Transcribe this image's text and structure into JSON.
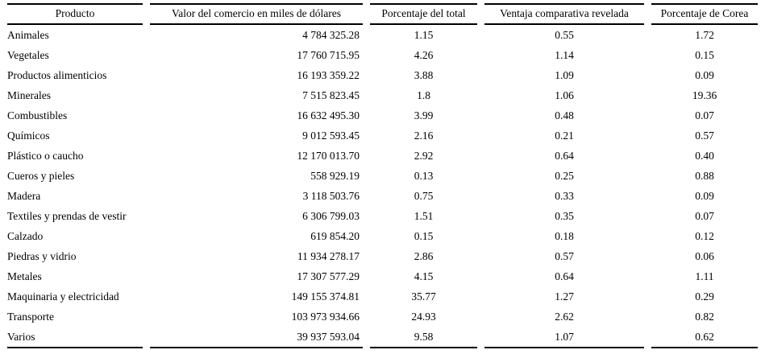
{
  "colors": {
    "background": "#ffffff",
    "text": "#000000",
    "rule": "#000000"
  },
  "table": {
    "columns": [
      {
        "label": "Producto",
        "align": "left"
      },
      {
        "label": "Valor del comercio en miles de dólares",
        "align": "right"
      },
      {
        "label": "Porcentaje del total",
        "align": "center"
      },
      {
        "label": "Ventaja comparativa revelada",
        "align": "center"
      },
      {
        "label": "Porcentaje de Corea",
        "align": "center"
      }
    ],
    "rows": [
      [
        "Animales",
        "4 784 325.28",
        "1.15",
        "0.55",
        "1.72"
      ],
      [
        "Vegetales",
        "17 760 715.95",
        "4.26",
        "1.14",
        "0.15"
      ],
      [
        "Productos alimenticios",
        "16 193 359.22",
        "3.88",
        "1.09",
        "0.09"
      ],
      [
        "Minerales",
        "7 515 823.45",
        "1.8",
        "1.06",
        "19.36"
      ],
      [
        "Combustibles",
        "16 632 495.30",
        "3.99",
        "0.48",
        "0.07"
      ],
      [
        "Químicos",
        "9 012 593.45",
        "2.16",
        "0.21",
        "0.57"
      ],
      [
        "Plástico o caucho",
        "12 170 013.70",
        "2.92",
        "0.64",
        "0.40"
      ],
      [
        "Cueros y pieles",
        "558 929.19",
        "0.13",
        "0.25",
        "0.88"
      ],
      [
        "Madera",
        "3 118 503.76",
        "0.75",
        "0.33",
        "0.09"
      ],
      [
        "Textiles y prendas de vestir",
        "6 306 799.03",
        "1.51",
        "0.35",
        "0.07"
      ],
      [
        "Calzado",
        "619 854.20",
        "0.15",
        "0.18",
        "0.12"
      ],
      [
        "Piedras y vidrio",
        "11 934 278.17",
        "2.86",
        "0.57",
        "0.06"
      ],
      [
        "Metales",
        "17 307 577.29",
        "4.15",
        "0.64",
        "1.11"
      ],
      [
        "Maquinaria y electricidad",
        "149 155 374.81",
        "35.77",
        "1.27",
        "0.29"
      ],
      [
        "Transporte",
        "103 973 934.66",
        "24.93",
        "2.62",
        "0.82"
      ],
      [
        "Varios",
        "39 937 593.04",
        "9.58",
        "1.07",
        "0.62"
      ]
    ]
  }
}
